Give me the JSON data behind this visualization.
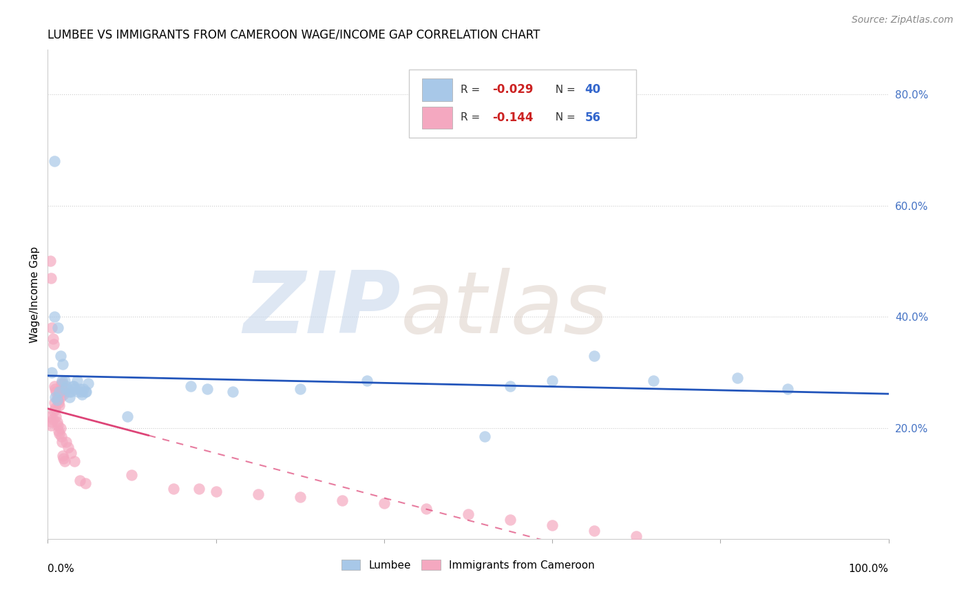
{
  "title": "LUMBEE VS IMMIGRANTS FROM CAMEROON WAGE/INCOME GAP CORRELATION CHART",
  "source": "Source: ZipAtlas.com",
  "ylabel": "Wage/Income Gap",
  "legend_lumbee_R": "-0.029",
  "legend_lumbee_N": "40",
  "legend_cam_R": "-0.144",
  "legend_cam_N": "56",
  "lumbee_color": "#a8c8e8",
  "cameroon_color": "#f4a8c0",
  "lumbee_line_color": "#2255bb",
  "cameroon_line_color": "#dd4477",
  "lumbee_x": [
    0.008,
    0.012,
    0.015,
    0.018,
    0.02,
    0.022,
    0.025,
    0.028,
    0.03,
    0.032,
    0.035,
    0.038,
    0.04,
    0.042,
    0.045,
    0.048,
    0.005,
    0.009,
    0.011,
    0.014,
    0.017,
    0.021,
    0.026,
    0.031,
    0.036,
    0.041,
    0.046,
    0.095,
    0.17,
    0.19,
    0.22,
    0.3,
    0.38,
    0.52,
    0.55,
    0.6,
    0.65,
    0.72,
    0.82,
    0.88
  ],
  "lumbee_y": [
    0.4,
    0.38,
    0.33,
    0.315,
    0.285,
    0.275,
    0.265,
    0.265,
    0.275,
    0.27,
    0.285,
    0.27,
    0.265,
    0.27,
    0.265,
    0.28,
    0.3,
    0.255,
    0.25,
    0.265,
    0.285,
    0.27,
    0.255,
    0.275,
    0.265,
    0.26,
    0.265,
    0.22,
    0.275,
    0.27,
    0.265,
    0.27,
    0.285,
    0.185,
    0.275,
    0.285,
    0.33,
    0.285,
    0.29,
    0.27
  ],
  "lumbee_outlier_x": [
    0.008
  ],
  "lumbee_outlier_y": [
    0.68
  ],
  "cameroon_x": [
    0.003,
    0.004,
    0.005,
    0.006,
    0.007,
    0.008,
    0.009,
    0.01,
    0.011,
    0.012,
    0.013,
    0.014,
    0.015,
    0.016,
    0.017,
    0.018,
    0.019,
    0.02,
    0.003,
    0.004,
    0.005,
    0.006,
    0.007,
    0.008,
    0.009,
    0.01,
    0.011,
    0.012,
    0.013,
    0.014,
    0.015,
    0.016,
    0.017,
    0.018,
    0.019,
    0.02,
    0.022,
    0.024,
    0.028,
    0.032,
    0.038,
    0.045,
    0.1,
    0.15,
    0.18,
    0.2,
    0.25,
    0.3,
    0.35,
    0.4,
    0.45,
    0.5,
    0.55,
    0.6,
    0.65,
    0.7
  ],
  "cameroon_y": [
    0.5,
    0.47,
    0.38,
    0.36,
    0.35,
    0.275,
    0.27,
    0.265,
    0.255,
    0.25,
    0.245,
    0.24,
    0.255,
    0.28,
    0.27,
    0.28,
    0.26,
    0.265,
    0.22,
    0.205,
    0.21,
    0.215,
    0.23,
    0.245,
    0.235,
    0.22,
    0.21,
    0.205,
    0.195,
    0.19,
    0.2,
    0.185,
    0.175,
    0.15,
    0.145,
    0.14,
    0.175,
    0.165,
    0.155,
    0.14,
    0.105,
    0.1,
    0.115,
    0.09,
    0.09,
    0.085,
    0.08,
    0.075,
    0.07,
    0.065,
    0.055,
    0.045,
    0.035,
    0.025,
    0.015,
    0.005
  ],
  "xlim": [
    0.0,
    1.0
  ],
  "ylim": [
    0.0,
    0.88
  ],
  "ytick_vals": [
    0.2,
    0.4,
    0.6,
    0.8
  ],
  "ytick_labels": [
    "20.0%",
    "40.0%",
    "60.0%",
    "80.0%"
  ]
}
